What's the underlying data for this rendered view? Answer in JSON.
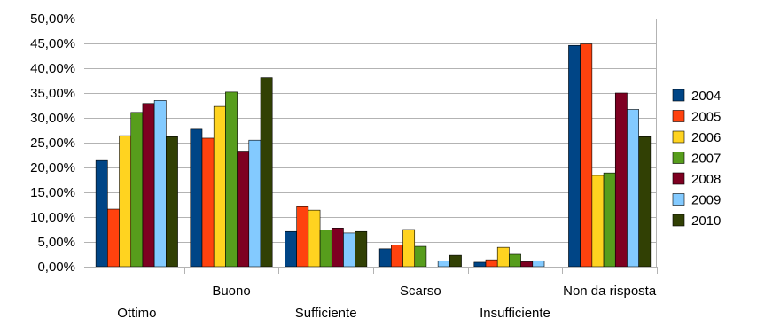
{
  "chart_data": {
    "type": "bar",
    "title": "",
    "xlabel": "",
    "ylabel": "",
    "ylim": [
      0,
      50
    ],
    "yticks": [
      0,
      5,
      10,
      15,
      20,
      25,
      30,
      35,
      40,
      45,
      50
    ],
    "ytick_labels": [
      "0,00%",
      "5,00%",
      "10,00%",
      "15,00%",
      "20,00%",
      "25,00%",
      "30,00%",
      "35,00%",
      "40,00%",
      "45,00%",
      "50,00%"
    ],
    "grid": true,
    "legend_position": "right",
    "categories": [
      "Ottimo",
      "Buono",
      "Sufficiente",
      "Scarso",
      "Insufficiente",
      "Non da risposta"
    ],
    "series": [
      {
        "name": "2004",
        "color": "#004586",
        "values": [
          21.4,
          27.7,
          7.1,
          3.6,
          0.9,
          44.6
        ]
      },
      {
        "name": "2005",
        "color": "#ff420e",
        "values": [
          11.6,
          25.9,
          12.1,
          4.4,
          1.4,
          44.9
        ]
      },
      {
        "name": "2006",
        "color": "#ffd320",
        "values": [
          26.4,
          32.3,
          11.4,
          7.5,
          3.9,
          18.4
        ]
      },
      {
        "name": "2007",
        "color": "#579d1c",
        "values": [
          31.1,
          35.2,
          7.4,
          4.1,
          2.5,
          18.9
        ]
      },
      {
        "name": "2008",
        "color": "#7e0021",
        "values": [
          32.9,
          23.3,
          7.8,
          0.0,
          1.0,
          35.0
        ]
      },
      {
        "name": "2009",
        "color": "#83caff",
        "values": [
          33.5,
          25.5,
          6.8,
          1.2,
          1.2,
          31.7
        ]
      },
      {
        "name": "2010",
        "color": "#314004",
        "values": [
          26.2,
          38.1,
          7.1,
          2.3,
          0.0,
          26.2
        ]
      }
    ]
  }
}
